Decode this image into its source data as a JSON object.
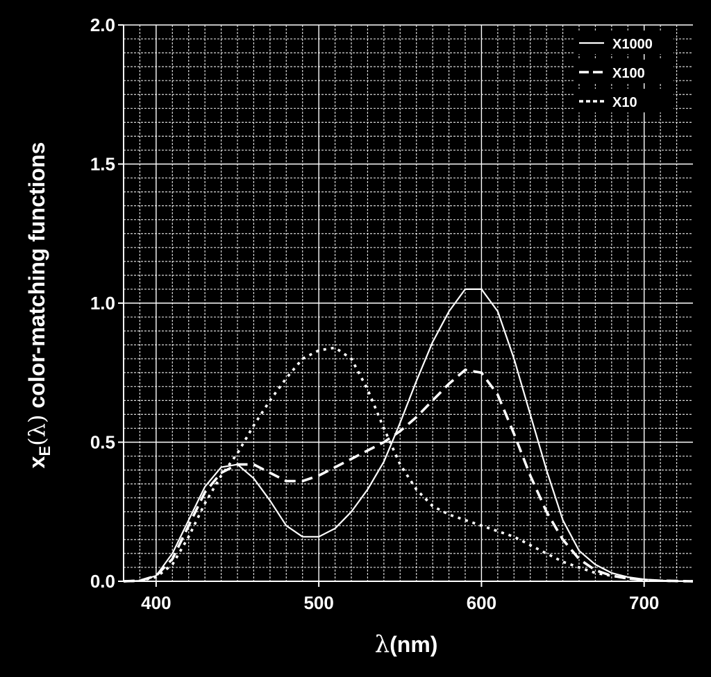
{
  "chart_data": {
    "type": "line",
    "title": "",
    "xlabel": {
      "symbol": "λ",
      "unit": "(nm)"
    },
    "ylabel": {
      "main": "x",
      "sub": "E",
      "arg": "(λ)",
      "rest": " color-matching functions"
    },
    "xlim": [
      380,
      730
    ],
    "ylim": [
      0,
      2.0
    ],
    "x_ticks": [
      400,
      500,
      600,
      700
    ],
    "y_ticks": [
      0.0,
      0.5,
      1.0,
      1.5,
      2.0
    ],
    "y_tick_labels": [
      "0.0",
      "0.5",
      "1.0",
      "1.5",
      "2.0"
    ],
    "grid": true,
    "legend_position": "top-right",
    "series": [
      {
        "name": "X1000",
        "style": "solid",
        "x": [
          380,
          390,
          400,
          410,
          420,
          430,
          440,
          450,
          460,
          470,
          480,
          490,
          500,
          510,
          520,
          530,
          540,
          550,
          560,
          570,
          580,
          590,
          600,
          610,
          620,
          630,
          640,
          650,
          660,
          670,
          680,
          690,
          700,
          710,
          720,
          730
        ],
        "y": [
          0.0,
          0.002,
          0.02,
          0.1,
          0.22,
          0.34,
          0.41,
          0.42,
          0.37,
          0.29,
          0.2,
          0.16,
          0.16,
          0.19,
          0.25,
          0.33,
          0.43,
          0.57,
          0.72,
          0.86,
          0.97,
          1.05,
          1.05,
          0.97,
          0.8,
          0.6,
          0.4,
          0.22,
          0.11,
          0.06,
          0.03,
          0.015,
          0.007,
          0.003,
          0.001,
          0.0
        ]
      },
      {
        "name": "X100",
        "style": "dashed",
        "x": [
          380,
          390,
          400,
          410,
          420,
          430,
          440,
          450,
          460,
          470,
          480,
          490,
          500,
          510,
          520,
          530,
          540,
          550,
          560,
          570,
          580,
          590,
          600,
          610,
          620,
          630,
          640,
          650,
          660,
          670,
          680,
          690,
          700,
          710,
          720,
          730
        ],
        "y": [
          0.0,
          0.002,
          0.02,
          0.08,
          0.2,
          0.32,
          0.39,
          0.42,
          0.42,
          0.39,
          0.36,
          0.36,
          0.38,
          0.41,
          0.44,
          0.47,
          0.5,
          0.54,
          0.59,
          0.65,
          0.71,
          0.76,
          0.75,
          0.67,
          0.53,
          0.38,
          0.25,
          0.15,
          0.08,
          0.04,
          0.02,
          0.01,
          0.005,
          0.002,
          0.001,
          0.0
        ]
      },
      {
        "name": "X10",
        "style": "dotted",
        "x": [
          380,
          390,
          400,
          410,
          420,
          430,
          440,
          450,
          460,
          470,
          480,
          490,
          500,
          510,
          520,
          530,
          540,
          550,
          560,
          570,
          580,
          590,
          600,
          610,
          620,
          630,
          640,
          650,
          660,
          670,
          680,
          690,
          700,
          710,
          720,
          730
        ],
        "y": [
          0.0,
          0.002,
          0.015,
          0.06,
          0.16,
          0.28,
          0.38,
          0.46,
          0.56,
          0.65,
          0.73,
          0.8,
          0.83,
          0.84,
          0.8,
          0.69,
          0.55,
          0.42,
          0.33,
          0.27,
          0.24,
          0.22,
          0.2,
          0.18,
          0.16,
          0.13,
          0.1,
          0.07,
          0.05,
          0.03,
          0.02,
          0.01,
          0.005,
          0.002,
          0.001,
          0.0
        ]
      }
    ]
  }
}
